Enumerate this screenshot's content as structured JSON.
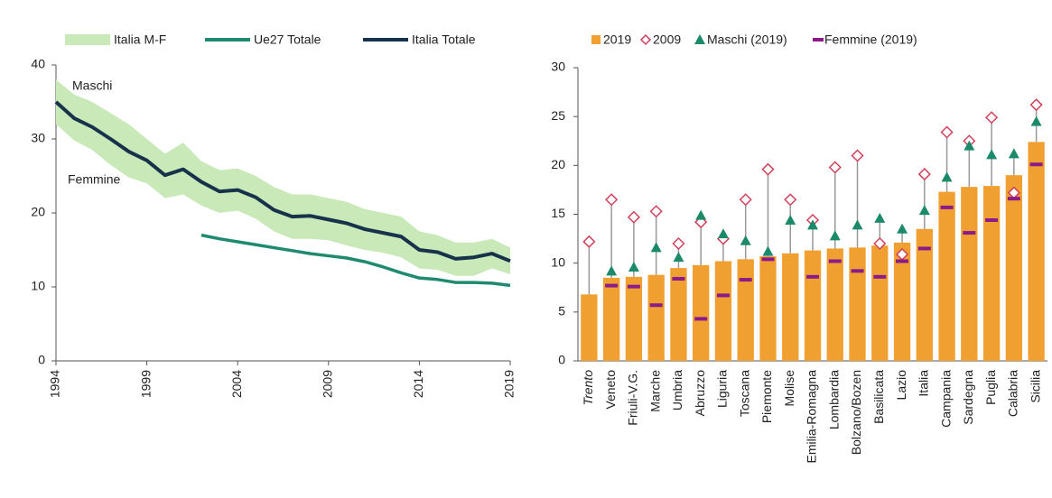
{
  "chart_data": [
    {
      "type": "line",
      "x": [
        1994,
        1995,
        1996,
        1997,
        1998,
        1999,
        2000,
        2001,
        2002,
        2003,
        2004,
        2005,
        2006,
        2007,
        2008,
        2009,
        2010,
        2011,
        2012,
        2013,
        2014,
        2015,
        2016,
        2017,
        2018,
        2019
      ],
      "xlim": [
        1994,
        2019
      ],
      "xticks": [
        1994,
        1999,
        2004,
        2009,
        2014,
        2019
      ],
      "ylim": [
        0,
        40
      ],
      "yticks": [
        0,
        10,
        20,
        30,
        40
      ],
      "annotations": [
        "Maschi",
        "Femmine"
      ],
      "series": [
        {
          "name": "Italia M-F",
          "color": "#c9e9b8",
          "kind": "band",
          "high": [
            38,
            36,
            35,
            33.5,
            32,
            30,
            28,
            29.5,
            27,
            25.8,
            26,
            25,
            23.5,
            22.5,
            22.5,
            22,
            21.5,
            20.5,
            20,
            19.5,
            17.5,
            17,
            16,
            16,
            16.5,
            15.3
          ],
          "low": [
            32,
            29.8,
            28.5,
            26.5,
            24.8,
            24,
            22,
            22.5,
            21,
            20,
            20.3,
            19.2,
            17.5,
            16.5,
            16.5,
            16.3,
            15.6,
            15,
            14.6,
            14,
            12.5,
            12.3,
            11.5,
            11.5,
            12.5,
            11.7
          ]
        },
        {
          "name": "Ue27 Totale",
          "color": "#1f8a70",
          "values": [
            null,
            null,
            null,
            null,
            null,
            null,
            null,
            null,
            17.0,
            16.5,
            16.1,
            15.7,
            15.3,
            14.9,
            14.5,
            14.2,
            13.9,
            13.4,
            12.7,
            11.9,
            11.2,
            11.0,
            10.6,
            10.6,
            10.5,
            10.2
          ]
        },
        {
          "name": "Italia Totale",
          "color": "#17324a",
          "values": [
            35,
            32.8,
            31.6,
            30,
            28.3,
            27.1,
            25.1,
            25.9,
            24.2,
            22.9,
            23.1,
            22.1,
            20.4,
            19.5,
            19.6,
            19.1,
            18.6,
            17.8,
            17.3,
            16.8,
            15.0,
            14.7,
            13.8,
            14.0,
            14.5,
            13.5
          ]
        }
      ]
    },
    {
      "type": "bar",
      "categories": [
        "Trento",
        "Veneto",
        "Friuli-V.G.",
        "Marche",
        "Umbria",
        "Abruzzo",
        "Liguria",
        "Toscana",
        "Piemonte",
        "Molise",
        "Emilia-Romagna",
        "Lombardia",
        "Bolzano/Bozen",
        "Basilicata",
        "Lazio",
        "Italia",
        "Campania",
        "Sardegna",
        "Puglia",
        "Calabria",
        "Sicilia"
      ],
      "ylim": [
        0,
        30
      ],
      "yticks": [
        0,
        5,
        10,
        15,
        20,
        25,
        30
      ],
      "series": [
        {
          "name": "2019",
          "color": "#f0a030",
          "marker": "bar",
          "values": [
            6.8,
            8.5,
            8.6,
            8.8,
            9.5,
            9.8,
            10.2,
            10.4,
            10.7,
            11.0,
            11.3,
            11.5,
            11.6,
            11.8,
            12.1,
            13.5,
            17.3,
            17.8,
            17.9,
            19.0,
            22.4
          ]
        },
        {
          "name": "2009",
          "color": "#d0405a",
          "marker": "diamond",
          "values": [
            12.2,
            16.5,
            14.7,
            15.3,
            12.0,
            14.2,
            12.5,
            16.5,
            19.6,
            16.5,
            14.4,
            19.8,
            21.0,
            12.0,
            10.9,
            19.1,
            23.4,
            22.5,
            24.9,
            17.2,
            26.2
          ]
        },
        {
          "name": "Maschi (2019)",
          "color": "#1b8a6b",
          "marker": "triangle",
          "values": [
            null,
            9.2,
            9.6,
            11.6,
            10.6,
            14.9,
            13.0,
            12.3,
            11.2,
            14.4,
            13.9,
            12.8,
            13.9,
            14.6,
            13.5,
            15.4,
            18.8,
            22.0,
            21.1,
            21.2,
            24.5
          ]
        },
        {
          "name": "Femmine (2019)",
          "color": "#8b1a8b",
          "marker": "dash",
          "values": [
            null,
            7.7,
            7.6,
            5.7,
            8.4,
            4.3,
            6.7,
            8.3,
            10.4,
            null,
            8.6,
            10.2,
            9.2,
            8.6,
            10.2,
            11.5,
            15.7,
            13.1,
            14.4,
            16.6,
            20.1
          ]
        }
      ]
    }
  ]
}
